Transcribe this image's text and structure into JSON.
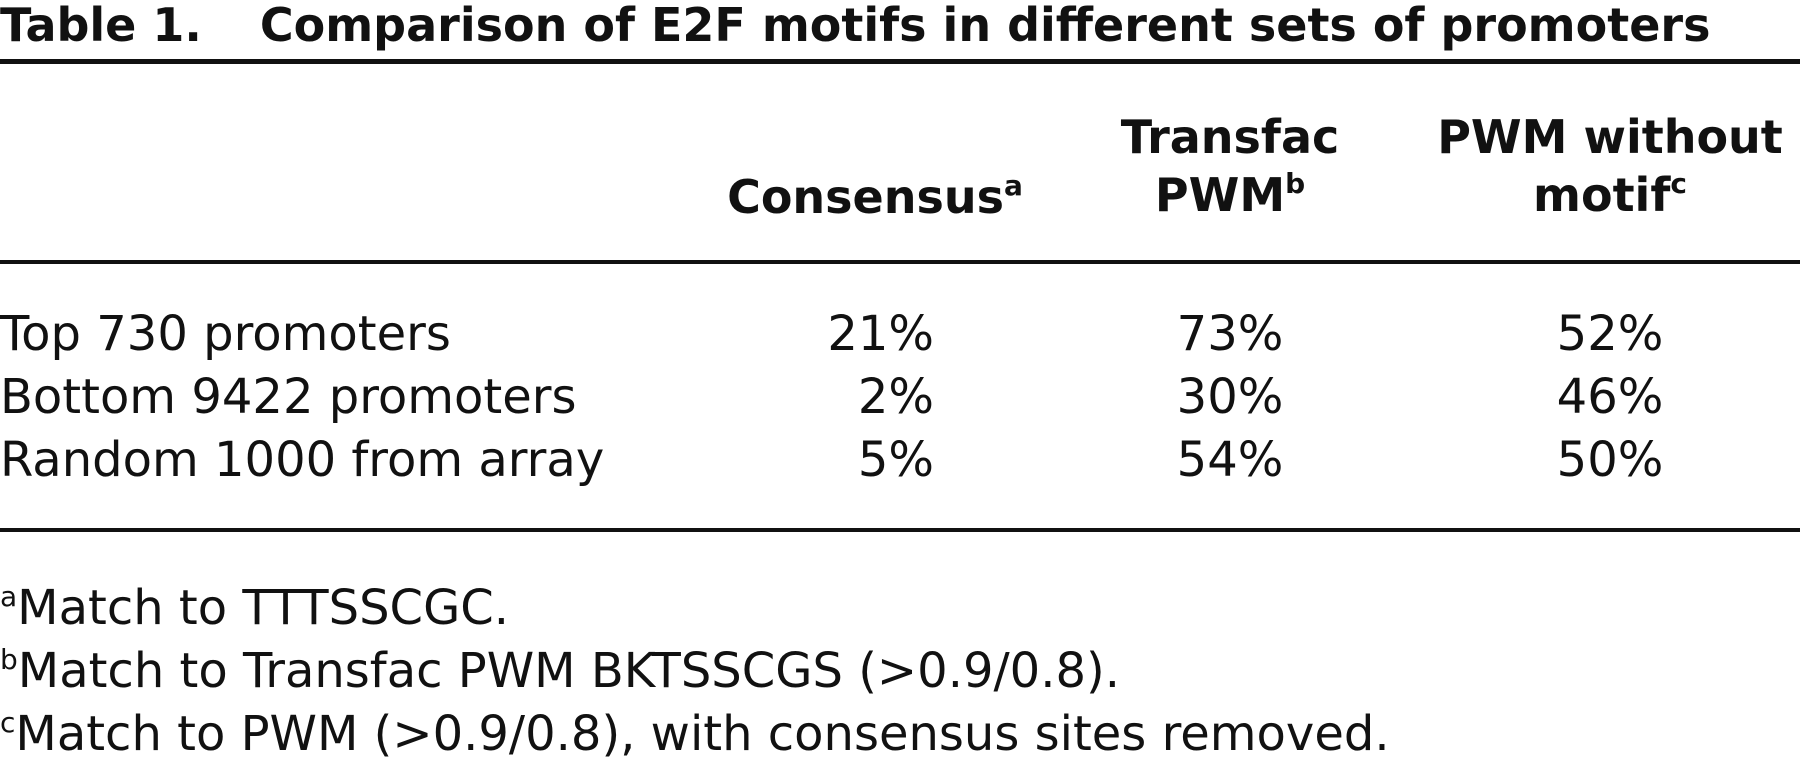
{
  "table": {
    "label": "Table 1.",
    "title": "Comparison of E2F motifs in different sets of promoters",
    "columns": [
      {
        "line1": "",
        "line2": "Consensus",
        "sup": "a"
      },
      {
        "line1": "Transfac",
        "line2": "PWM",
        "sup": "b"
      },
      {
        "line1": "PWM without",
        "line2": "motif",
        "sup": "c"
      }
    ],
    "rows": [
      {
        "label": "Top 730 promoters",
        "values": [
          "21%",
          "73%",
          "52%"
        ]
      },
      {
        "label": "Bottom 9422 promoters",
        "values": [
          "2%",
          "30%",
          "46%"
        ]
      },
      {
        "label": "Random 1000 from array",
        "values": [
          "5%",
          "54%",
          "50%"
        ]
      }
    ],
    "footnotes": [
      {
        "mark": "a",
        "text": "Match to TTTSSCGC."
      },
      {
        "mark": "b",
        "text": "Match to Transfac PWM BKTSSCGS (>0.9/0.8)."
      },
      {
        "mark": "c",
        "text": "Match to PWM (>0.9/0.8), with consensus sites removed."
      }
    ]
  }
}
